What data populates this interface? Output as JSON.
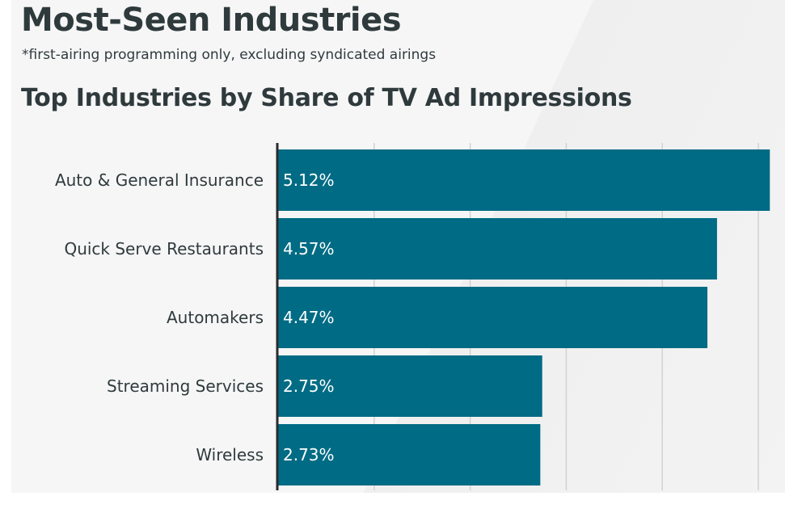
{
  "header": {
    "title": "Most-Seen Industries",
    "subtitle": "*first-airing programming only, excluding syndicated airings"
  },
  "chart_data": {
    "type": "bar",
    "orientation": "horizontal",
    "title": "Top Industries by Share of TV Ad Impressions",
    "categories": [
      "Auto & General Insurance",
      "Quick Serve Restaurants",
      "Automakers",
      "Streaming Services",
      "Wireless"
    ],
    "values": [
      5.12,
      4.57,
      4.47,
      2.75,
      2.73
    ],
    "value_labels": [
      "5.12%",
      "4.57%",
      "4.47%",
      "2.75%",
      "2.73%"
    ],
    "xlim": [
      0,
      5
    ],
    "grid": true,
    "bar_color": "#006b84"
  }
}
